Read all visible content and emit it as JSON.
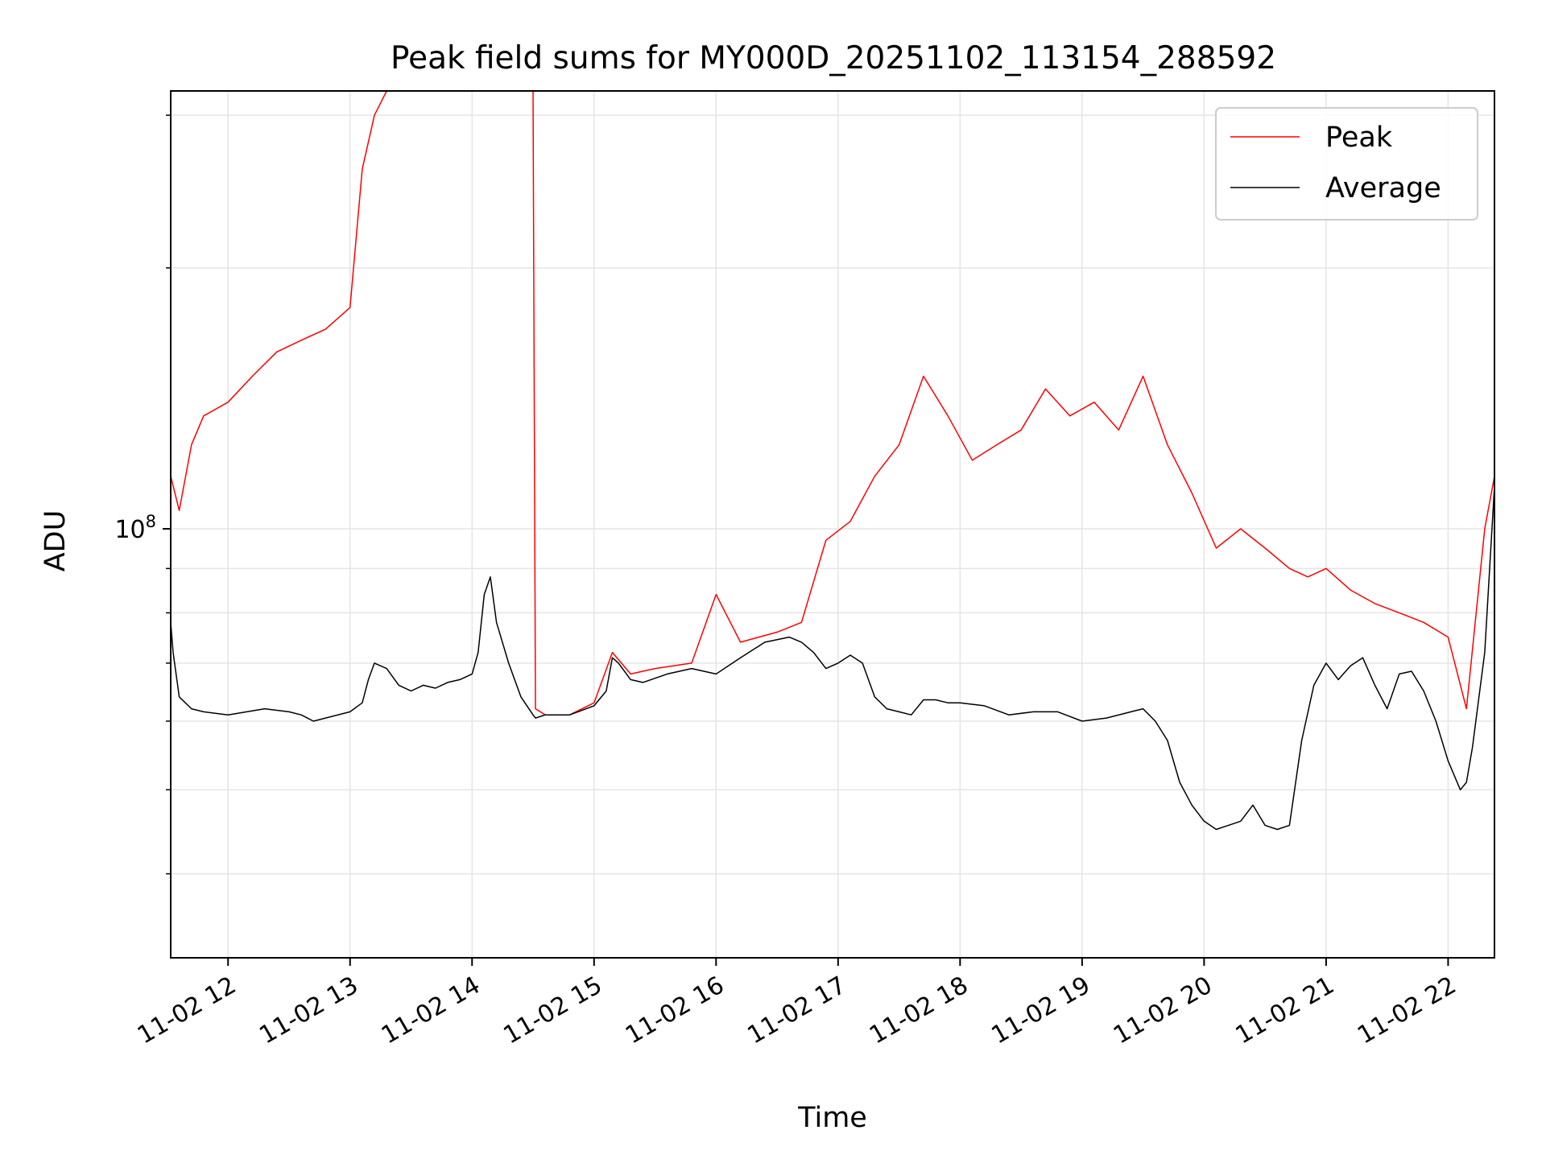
{
  "chart_data": {
    "type": "line",
    "title": "Peak field sums for MY000D_20251102_113154_288592",
    "xlabel": "Time",
    "ylabel": "ADU",
    "yscale": "log",
    "ylim": [
      32000000,
      320000000
    ],
    "xlim": [
      11.53,
      22.38
    ],
    "y_tick_label": {
      "base": "10",
      "exp": "8",
      "value": 100000000
    },
    "x_ticks": [
      {
        "value": 12,
        "label": "11-02 12"
      },
      {
        "value": 13,
        "label": "11-02 13"
      },
      {
        "value": 14,
        "label": "11-02 14"
      },
      {
        "value": 15,
        "label": "11-02 15"
      },
      {
        "value": 16,
        "label": "11-02 16"
      },
      {
        "value": 17,
        "label": "11-02 17"
      },
      {
        "value": 18,
        "label": "11-02 18"
      },
      {
        "value": 19,
        "label": "11-02 19"
      },
      {
        "value": 20,
        "label": "11-02 20"
      },
      {
        "value": 21,
        "label": "11-02 21"
      },
      {
        "value": 22,
        "label": "11-02 22"
      }
    ],
    "grid": true,
    "legend_position": "top-right",
    "series": [
      {
        "name": "Peak",
        "color": "#ff0000",
        "x": [
          11.53,
          11.6,
          11.7,
          11.8,
          12.0,
          12.2,
          12.4,
          12.6,
          12.8,
          13.0,
          13.1,
          13.2,
          13.3,
          13.4,
          13.5,
          13.6,
          13.7,
          13.8,
          13.9,
          14.0,
          14.1,
          14.2,
          14.3,
          14.4,
          14.5,
          14.52,
          14.6,
          14.8,
          15.0,
          15.15,
          15.3,
          15.5,
          15.8,
          16.0,
          16.2,
          16.5,
          16.7,
          16.9,
          17.1,
          17.3,
          17.5,
          17.7,
          17.9,
          18.1,
          18.3,
          18.5,
          18.7,
          18.9,
          19.1,
          19.3,
          19.5,
          19.7,
          19.9,
          20.1,
          20.3,
          20.5,
          20.7,
          20.85,
          21.0,
          21.2,
          21.4,
          21.6,
          21.8,
          22.0,
          22.15,
          22.3,
          22.38
        ],
        "values": [
          115000000,
          105000000,
          125000000,
          135000000,
          140000000,
          150000000,
          160000000,
          165000000,
          170000000,
          180000000,
          260000000,
          300000000,
          320000000,
          320000000,
          320000000,
          320000000,
          320000000,
          320000000,
          320000000,
          320000000,
          320000000,
          320000000,
          320000000,
          320000000,
          320000000,
          62000000,
          61000000,
          61000000,
          63000000,
          72000000,
          68000000,
          69000000,
          70000000,
          84000000,
          74000000,
          76000000,
          78000000,
          97000000,
          102000000,
          115000000,
          125000000,
          150000000,
          135000000,
          120000000,
          125000000,
          130000000,
          145000000,
          135000000,
          140000000,
          130000000,
          150000000,
          125000000,
          110000000,
          95000000,
          100000000,
          95000000,
          90000000,
          88000000,
          90000000,
          85000000,
          82000000,
          80000000,
          78000000,
          75000000,
          62000000,
          100000000,
          115000000
        ]
      },
      {
        "name": "Average",
        "color": "#000000",
        "x": [
          11.53,
          11.55,
          11.6,
          11.7,
          11.8,
          12.0,
          12.3,
          12.5,
          12.6,
          12.7,
          12.8,
          13.0,
          13.1,
          13.15,
          13.2,
          13.3,
          13.4,
          13.5,
          13.6,
          13.7,
          13.8,
          13.9,
          14.0,
          14.05,
          14.1,
          14.15,
          14.2,
          14.3,
          14.4,
          14.5,
          14.52,
          14.6,
          14.8,
          15.0,
          15.1,
          15.15,
          15.2,
          15.3,
          15.4,
          15.6,
          15.8,
          16.0,
          16.2,
          16.4,
          16.6,
          16.7,
          16.8,
          16.9,
          17.0,
          17.1,
          17.2,
          17.3,
          17.4,
          17.5,
          17.6,
          17.7,
          17.8,
          17.9,
          18.0,
          18.2,
          18.4,
          18.6,
          18.8,
          19.0,
          19.2,
          19.4,
          19.5,
          19.6,
          19.7,
          19.8,
          19.9,
          20.0,
          20.1,
          20.2,
          20.3,
          20.4,
          20.5,
          20.6,
          20.7,
          20.8,
          20.9,
          21.0,
          21.1,
          21.2,
          21.3,
          21.4,
          21.5,
          21.6,
          21.7,
          21.8,
          21.9,
          22.0,
          22.1,
          22.15,
          22.2,
          22.3,
          22.38
        ],
        "values": [
          78000000,
          72000000,
          64000000,
          62000000,
          61500000,
          61000000,
          62000000,
          61500000,
          61000000,
          60000000,
          60500000,
          61500000,
          63000000,
          67000000,
          70000000,
          69000000,
          66000000,
          65000000,
          66000000,
          65500000,
          66500000,
          67000000,
          68000000,
          72000000,
          84000000,
          88000000,
          78000000,
          70000000,
          64000000,
          61000000,
          60500000,
          61000000,
          61000000,
          62500000,
          65000000,
          71000000,
          70000000,
          67000000,
          66500000,
          68000000,
          69000000,
          68000000,
          71000000,
          74000000,
          75000000,
          74000000,
          72000000,
          69000000,
          70000000,
          71500000,
          70000000,
          64000000,
          62000000,
          61500000,
          61000000,
          63500000,
          63500000,
          63000000,
          63000000,
          62500000,
          61000000,
          61500000,
          61500000,
          60000000,
          60500000,
          61500000,
          62000000,
          60000000,
          57000000,
          51000000,
          48000000,
          46000000,
          45000000,
          45500000,
          46000000,
          48000000,
          45500000,
          45000000,
          45500000,
          57000000,
          66000000,
          70000000,
          67000000,
          69500000,
          71000000,
          66000000,
          62000000,
          68000000,
          68500000,
          65000000,
          60000000,
          54000000,
          50000000,
          51000000,
          56000000,
          72000000,
          112000000
        ]
      }
    ]
  },
  "legend": {
    "peak_label": "Peak",
    "average_label": "Average"
  }
}
